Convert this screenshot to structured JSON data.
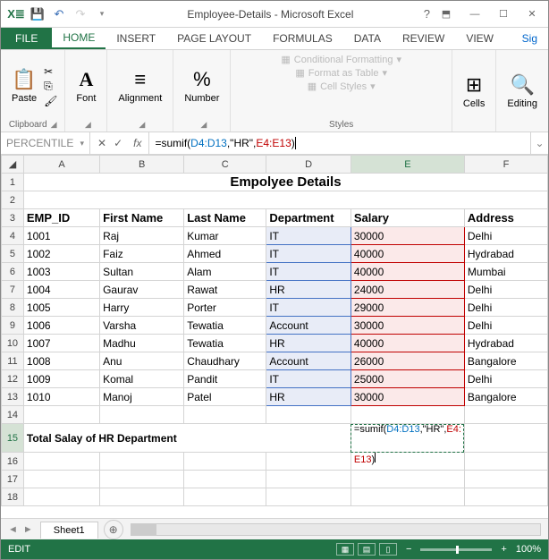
{
  "window": {
    "title": "Employee-Details - Microsoft Excel"
  },
  "qat": {
    "excel_color": "#217346"
  },
  "tabs": {
    "file": "FILE",
    "home": "HOME",
    "insert": "INSERT",
    "page_layout": "PAGE LAYOUT",
    "formulas": "FORMULAS",
    "data": "DATA",
    "review": "REVIEW",
    "view": "VIEW",
    "signin": "Sig"
  },
  "ribbon": {
    "clipboard": {
      "paste": "Paste",
      "label": "Clipboard"
    },
    "font": {
      "btn": "Font",
      "label": "Font"
    },
    "alignment": {
      "btn": "Alignment",
      "label": "Alignment"
    },
    "number": {
      "btn": "Number",
      "label": "Number"
    },
    "styles": {
      "cond": "Conditional Formatting",
      "table": "Format as Table",
      "cell": "Cell Styles",
      "label": "Styles"
    },
    "cells": {
      "btn": "Cells",
      "label": "Cells"
    },
    "editing": {
      "btn": "Editing",
      "label": "Editing"
    }
  },
  "namebox": {
    "value": "PERCENTILE"
  },
  "formula_bar": {
    "prefix": "=sumif(",
    "ref1": "D4:D13",
    "mid": ",\"HR\",",
    "ref2": "E4:E13",
    "suffix": ")"
  },
  "columns": [
    "A",
    "B",
    "C",
    "D",
    "E",
    "F"
  ],
  "title_row": {
    "text": "Empolyee Details"
  },
  "headers": {
    "a": "EMP_ID",
    "b": "First Name",
    "c": "Last Name",
    "d": "Department",
    "e": "Salary",
    "f": "Address"
  },
  "rows": [
    {
      "id": "1001",
      "fn": "Raj",
      "ln": "Kumar",
      "dept": "IT",
      "sal": "30000",
      "addr": "Delhi"
    },
    {
      "id": "1002",
      "fn": "Faiz",
      "ln": "Ahmed",
      "dept": "IT",
      "sal": "40000",
      "addr": "Hydrabad"
    },
    {
      "id": "1003",
      "fn": "Sultan",
      "ln": "Alam",
      "dept": "IT",
      "sal": "40000",
      "addr": "Mumbai"
    },
    {
      "id": "1004",
      "fn": "Gaurav",
      "ln": "Rawat",
      "dept": "HR",
      "sal": "24000",
      "addr": "Delhi"
    },
    {
      "id": "1005",
      "fn": "Harry",
      "ln": "Porter",
      "dept": "IT",
      "sal": "29000",
      "addr": "Delhi"
    },
    {
      "id": "1006",
      "fn": "Varsha",
      "ln": "Tewatia",
      "dept": "Account",
      "sal": "30000",
      "addr": "Delhi"
    },
    {
      "id": "1007",
      "fn": "Madhu",
      "ln": "Tewatia",
      "dept": "HR",
      "sal": "40000",
      "addr": "Hydrabad"
    },
    {
      "id": "1008",
      "fn": "Anu",
      "ln": "Chaudhary",
      "dept": "Account",
      "sal": "26000",
      "addr": "Bangalore"
    },
    {
      "id": "1009",
      "fn": "Komal",
      "ln": "Pandit",
      "dept": "IT",
      "sal": "25000",
      "addr": "Delhi"
    },
    {
      "id": "1010",
      "fn": "Manoj",
      "ln": "Patel",
      "dept": "HR",
      "sal": "30000",
      "addr": "Bangalore"
    }
  ],
  "total_row": {
    "label": "Total Salay of HR Department"
  },
  "cell_formula": {
    "prefix": "=sumif(",
    "ref1": "D4:D13",
    "mid": ",\"HR\",",
    "ref2a": "E4:",
    "ref2b": "E13",
    "suffix": ")"
  },
  "sheet": {
    "name": "Sheet1"
  },
  "status": {
    "mode": "EDIT",
    "zoom": "100%"
  },
  "colors": {
    "green": "#217346",
    "blue_sel": "#e8ecf7",
    "red_sel": "#fbe9e9",
    "blue_border": "#4472c4",
    "red_border": "#c00000"
  }
}
